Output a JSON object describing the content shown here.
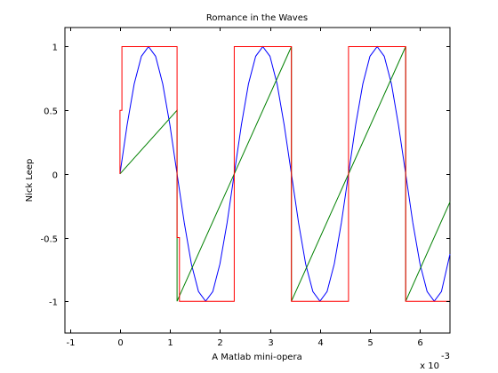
{
  "chart_data": {
    "type": "line",
    "title": "Romance in the Waves",
    "xlabel": "A Matlab mini-opera",
    "ylabel": "Nick Leep",
    "x_exponent_label": "x 10",
    "x_exponent_power": "-3",
    "xlim": [
      -1.1,
      6.6
    ],
    "ylim": [
      -1.25,
      1.15
    ],
    "xtick_labels": [
      {
        "value": -1,
        "label": "-1"
      },
      {
        "value": 0,
        "label": "0"
      },
      {
        "value": 1,
        "label": "1"
      },
      {
        "value": 2,
        "label": "2"
      },
      {
        "value": 3,
        "label": "3"
      },
      {
        "value": 4,
        "label": "4"
      },
      {
        "value": 5,
        "label": "5"
      },
      {
        "value": 6,
        "label": "6"
      }
    ],
    "ytick_labels": [
      {
        "value": -1,
        "label": "-1"
      },
      {
        "value": -0.5,
        "label": "-0.5"
      },
      {
        "value": 0,
        "label": "0"
      },
      {
        "value": 0.5,
        "label": "0.5"
      },
      {
        "value": 1,
        "label": "1"
      }
    ],
    "grid": false,
    "series": [
      {
        "color": "#0000ff",
        "style": "sine",
        "x": [
          0,
          0.143,
          0.286,
          0.429,
          0.571,
          0.714,
          0.857,
          1.0,
          1.143,
          1.286,
          1.429,
          1.571,
          1.714,
          1.857,
          2.0,
          2.143,
          2.286,
          2.429,
          2.571,
          2.714,
          2.857,
          3.0,
          3.143,
          3.286,
          3.429,
          3.571,
          3.714,
          3.857,
          4.0,
          4.143,
          4.286,
          4.429,
          4.571,
          4.714,
          4.857,
          5.0,
          5.143,
          5.286,
          5.429,
          5.571,
          5.714,
          5.857,
          6.0,
          6.143,
          6.286,
          6.429,
          6.6
        ],
        "y": [
          0,
          0.383,
          0.707,
          0.924,
          1.0,
          0.924,
          0.707,
          0.383,
          0,
          -0.383,
          -0.707,
          -0.924,
          -1.0,
          -0.924,
          -0.707,
          -0.383,
          0,
          0.383,
          0.707,
          0.924,
          1.0,
          0.924,
          0.707,
          0.383,
          0,
          -0.383,
          -0.707,
          -0.924,
          -1.0,
          -0.924,
          -0.707,
          -0.383,
          0,
          0.383,
          0.707,
          0.924,
          1.0,
          0.924,
          0.707,
          0.383,
          0,
          -0.383,
          -0.707,
          -0.924,
          -1.0,
          -0.924,
          -0.63
        ]
      },
      {
        "color": "#008000",
        "style": "sawtooth",
        "x": [
          0,
          1.143,
          1.143,
          3.429,
          3.429,
          5.714,
          5.714,
          6.6
        ],
        "y": [
          0,
          0.5,
          -1,
          1,
          -1,
          1,
          -1,
          -0.22
        ]
      },
      {
        "color": "#ff0000",
        "style": "square",
        "x": [
          0,
          0,
          0.04,
          0.04,
          1.143,
          1.143,
          1.19,
          1.19,
          2.286,
          2.286,
          3.429,
          3.429,
          4.571,
          4.571,
          5.714,
          5.714,
          6.6
        ],
        "y": [
          0,
          0.5,
          0.5,
          1,
          1,
          -0.5,
          -0.5,
          -1,
          -1,
          1,
          1,
          -1,
          -1,
          1,
          1,
          -1,
          -1
        ]
      }
    ]
  }
}
